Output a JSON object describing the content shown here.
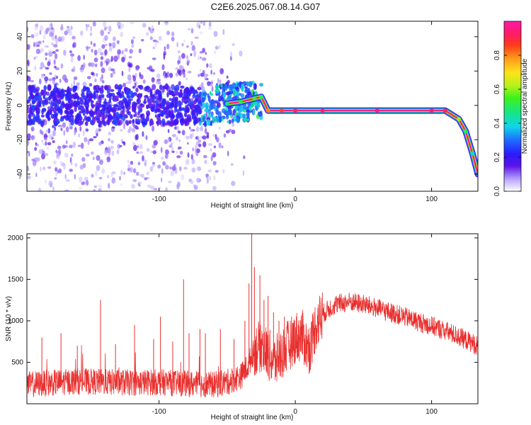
{
  "title": "C2E6.2025.067.08.14.G07",
  "chart_data": [
    {
      "type": "heatmap",
      "xlabel": "Height of straight line (km)",
      "ylabel": "Frequency (Hz)",
      "xlim": [
        -197,
        134
      ],
      "ylim": [
        -50,
        49
      ],
      "xticks": [
        -100,
        0,
        100
      ],
      "yticks": [
        -40,
        -20,
        0,
        20,
        40
      ],
      "colorbar": {
        "label": "Normalized spectral amplitude",
        "lim": [
          0.0,
          1.0
        ],
        "ticks": [
          0.0,
          0.2,
          0.4,
          0.6,
          0.8
        ]
      },
      "ridge": {
        "description_points_x": [
          -50,
          -40,
          -30,
          -25,
          -20,
          -10,
          0,
          20,
          60,
          100,
          110,
          120,
          125,
          130,
          134
        ],
        "description_points_y": [
          1,
          2,
          4,
          5,
          -3,
          -3,
          -3,
          -3,
          -3,
          -3,
          -3,
          -8,
          -15,
          -28,
          -40
        ],
        "amplitude": [
          0.45,
          0.5,
          0.55,
          0.5,
          0.8,
          0.85,
          0.9,
          0.92,
          0.95,
          0.92,
          0.9,
          0.6,
          0.5,
          0.4,
          0.3
        ]
      }
    },
    {
      "type": "line",
      "xlabel": "Height of straight line (km)",
      "ylabel": "SNR (10 * v/v)",
      "xlim": [
        -197,
        134
      ],
      "ylim": [
        0,
        2050
      ],
      "xticks": [
        -100,
        0,
        100
      ],
      "yticks": [
        500,
        1000,
        1500,
        2000
      ],
      "series": [
        {
          "color": "#e8302e",
          "x": [
            -197,
            -180,
            -160,
            -140,
            -120,
            -100,
            -80,
            -60,
            -50,
            -40,
            -35,
            -30,
            -25,
            -20,
            -15,
            -10,
            -5,
            0,
            5,
            10,
            15,
            20,
            25,
            30,
            40,
            50,
            60,
            70,
            80,
            90,
            100,
            110,
            120,
            134
          ],
          "y": [
            230,
            250,
            270,
            260,
            255,
            260,
            240,
            230,
            260,
            330,
            450,
            650,
            700,
            600,
            500,
            600,
            700,
            800,
            820,
            650,
            950,
            1080,
            1150,
            1200,
            1230,
            1200,
            1150,
            1100,
            1050,
            990,
            940,
            880,
            810,
            700
          ],
          "spikes_x": [
            -186,
            -172,
            -160,
            -143,
            -132,
            -118,
            -104,
            -99,
            -90,
            -82,
            -78,
            -70,
            -66,
            -55,
            -45,
            -37,
            -34,
            -32,
            -30,
            -26,
            -23,
            -20,
            -16,
            -12,
            -8
          ],
          "spikes_y": [
            800,
            850,
            700,
            1250,
            720,
            950,
            780,
            1050,
            750,
            1500,
            850,
            900,
            850,
            900,
            780,
            1000,
            1450,
            2050,
            1650,
            1550,
            1250,
            1300,
            1100,
            1000,
            1050
          ]
        }
      ]
    }
  ]
}
